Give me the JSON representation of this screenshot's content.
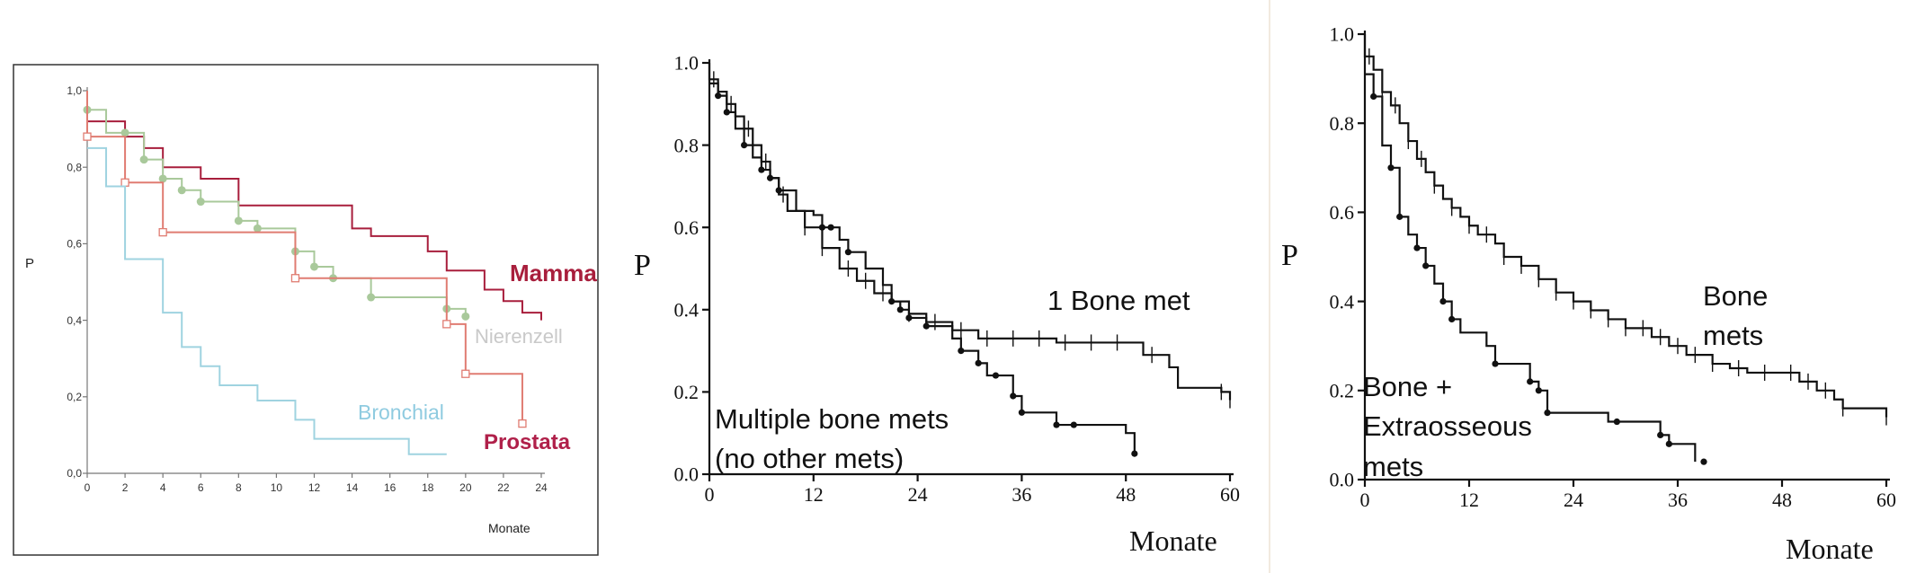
{
  "colors": {
    "mamma": "#a81e3c",
    "prostata": "#e07c72",
    "nierenzell": "#a9c99b",
    "nierenzell_label": "#c9c9c9",
    "bronchial": "#9fd3e0",
    "bronchial_label": "#8fcbe0",
    "prostata_label": "#b0204a",
    "ink": "#111111",
    "frame": "#444444"
  },
  "chart_data": [
    {
      "type": "line",
      "ylabel": "P",
      "xlabel": "Monate",
      "xlim": [
        0,
        24
      ],
      "ylim": [
        0,
        1
      ],
      "x_ticks": [
        "0",
        "2",
        "4",
        "6",
        "8",
        "10",
        "12",
        "14",
        "16",
        "18",
        "20",
        "22",
        "24"
      ],
      "y_ticks": [
        "0,0",
        "0,2",
        "0,4",
        "0,6",
        "0,8",
        "1,0"
      ],
      "legend": "inline labels",
      "series": [
        {
          "name": "Mamma",
          "color_key": "mamma",
          "marker": "none",
          "points": [
            [
              0,
              1.0
            ],
            [
              0,
              0.92
            ],
            [
              2,
              0.88
            ],
            [
              3,
              0.85
            ],
            [
              4,
              0.8
            ],
            [
              6,
              0.77
            ],
            [
              8,
              0.7
            ],
            [
              14,
              0.64
            ],
            [
              15,
              0.62
            ],
            [
              18,
              0.58
            ],
            [
              19,
              0.53
            ],
            [
              21,
              0.48
            ],
            [
              22,
              0.45
            ],
            [
              23,
              0.42
            ],
            [
              24,
              0.4
            ]
          ]
        },
        {
          "name": "Nierenzell",
          "color_key": "nierenzell",
          "marker": "dot",
          "points": [
            [
              0,
              1.0
            ],
            [
              0,
              0.95
            ],
            [
              1,
              0.89
            ],
            [
              3,
              0.82
            ],
            [
              4,
              0.77
            ],
            [
              5,
              0.74
            ],
            [
              6,
              0.71
            ],
            [
              8,
              0.66
            ],
            [
              9,
              0.64
            ],
            [
              11,
              0.58
            ],
            [
              12,
              0.54
            ],
            [
              13,
              0.51
            ],
            [
              15,
              0.46
            ],
            [
              19,
              0.43
            ],
            [
              20,
              0.41
            ]
          ],
          "markers_x": [
            0,
            2,
            3,
            4,
            5,
            6,
            8,
            9,
            11,
            12,
            13,
            15,
            19,
            20
          ]
        },
        {
          "name": "Prostata",
          "color_key": "prostata",
          "marker": "square",
          "points": [
            [
              0,
              1.0
            ],
            [
              0,
              0.88
            ],
            [
              2,
              0.76
            ],
            [
              4,
              0.63
            ],
            [
              11,
              0.51
            ],
            [
              19,
              0.39
            ],
            [
              20,
              0.26
            ],
            [
              23,
              0.13
            ]
          ],
          "markers_x": [
            0,
            2,
            4,
            11,
            19,
            20,
            23
          ]
        },
        {
          "name": "Bronchial",
          "color_key": "bronchial",
          "marker": "none",
          "points": [
            [
              0,
              0.85
            ],
            [
              1,
              0.75
            ],
            [
              2,
              0.56
            ],
            [
              4,
              0.42
            ],
            [
              5,
              0.33
            ],
            [
              6,
              0.28
            ],
            [
              7,
              0.23
            ],
            [
              9,
              0.19
            ],
            [
              11,
              0.14
            ],
            [
              12,
              0.09
            ],
            [
              17,
              0.05
            ],
            [
              19,
              0.05
            ]
          ]
        }
      ]
    },
    {
      "type": "line",
      "ylabel": "P",
      "xlabel": "Monate",
      "xlim": [
        0,
        60
      ],
      "ylim": [
        0,
        1
      ],
      "x_ticks": [
        "0",
        "12",
        "24",
        "36",
        "48",
        "60"
      ],
      "y_ticks": [
        "0.0",
        "0.2",
        "0.4",
        "0.6",
        "0.8",
        "1.0"
      ],
      "legend": "inline labels",
      "series": [
        {
          "name": "1 Bone met",
          "marker": "cross",
          "points": [
            [
              0,
              1.0
            ],
            [
              0,
              0.96
            ],
            [
              1,
              0.93
            ],
            [
              2,
              0.9
            ],
            [
              3,
              0.87
            ],
            [
              4,
              0.84
            ],
            [
              5,
              0.8
            ],
            [
              6,
              0.76
            ],
            [
              7,
              0.72
            ],
            [
              8,
              0.68
            ],
            [
              9,
              0.64
            ],
            [
              11,
              0.6
            ],
            [
              13,
              0.55
            ],
            [
              15,
              0.5
            ],
            [
              17,
              0.47
            ],
            [
              19,
              0.44
            ],
            [
              21,
              0.42
            ],
            [
              23,
              0.39
            ],
            [
              25,
              0.37
            ],
            [
              28,
              0.35
            ],
            [
              31,
              0.33
            ],
            [
              40,
              0.32
            ],
            [
              50,
              0.29
            ],
            [
              53,
              0.26
            ],
            [
              54,
              0.21
            ],
            [
              59,
              0.2
            ],
            [
              60,
              0.18
            ]
          ],
          "markers_x": [
            0.5,
            2.5,
            4.5,
            6.5,
            8.5,
            11,
            13,
            16,
            18,
            20,
            23,
            26,
            29,
            32,
            35,
            38,
            41,
            44,
            47,
            51,
            59,
            60
          ]
        },
        {
          "name": "Multiple bone mets",
          "marker": "dot",
          "points": [
            [
              0,
              0.95
            ],
            [
              1,
              0.92
            ],
            [
              2,
              0.88
            ],
            [
              3,
              0.84
            ],
            [
              4,
              0.8
            ],
            [
              5,
              0.77
            ],
            [
              6,
              0.74
            ],
            [
              7,
              0.72
            ],
            [
              8,
              0.69
            ],
            [
              10,
              0.64
            ],
            [
              12,
              0.63
            ],
            [
              13,
              0.6
            ],
            [
              15,
              0.57
            ],
            [
              16,
              0.54
            ],
            [
              18,
              0.5
            ],
            [
              20,
              0.46
            ],
            [
              21,
              0.42
            ],
            [
              22,
              0.4
            ],
            [
              23,
              0.38
            ],
            [
              25,
              0.36
            ],
            [
              28,
              0.33
            ],
            [
              29,
              0.3
            ],
            [
              31,
              0.27
            ],
            [
              32,
              0.24
            ],
            [
              35,
              0.19
            ],
            [
              36,
              0.15
            ],
            [
              40,
              0.12
            ],
            [
              48,
              0.1
            ],
            [
              49,
              0.05
            ]
          ],
          "markers_x": [
            1,
            2,
            4,
            6,
            7,
            8,
            13,
            14,
            16,
            21,
            22,
            23,
            25,
            29,
            31,
            33,
            35,
            36,
            40,
            42,
            49
          ]
        }
      ],
      "annotations": [
        "1 Bone met",
        "Multiple bone mets",
        "(no other mets)"
      ]
    },
    {
      "type": "line",
      "ylabel": "P",
      "xlabel": "Monate",
      "xlim": [
        0,
        60
      ],
      "ylim": [
        0,
        1
      ],
      "x_ticks": [
        "0",
        "12",
        "24",
        "36",
        "48",
        "60"
      ],
      "y_ticks": [
        "0.0",
        "0.2",
        "0.4",
        "0.6",
        "0.8",
        "1.0"
      ],
      "legend": "inline labels",
      "series": [
        {
          "name": "Bone mets",
          "marker": "cross",
          "points": [
            [
              0,
              1.0
            ],
            [
              0,
              0.95
            ],
            [
              1,
              0.92
            ],
            [
              2,
              0.87
            ],
            [
              3,
              0.84
            ],
            [
              4,
              0.8
            ],
            [
              5,
              0.76
            ],
            [
              6,
              0.72
            ],
            [
              7,
              0.69
            ],
            [
              8,
              0.66
            ],
            [
              9,
              0.63
            ],
            [
              10,
              0.61
            ],
            [
              11,
              0.59
            ],
            [
              12,
              0.57
            ],
            [
              13,
              0.55
            ],
            [
              15,
              0.53
            ],
            [
              16,
              0.5
            ],
            [
              18,
              0.48
            ],
            [
              20,
              0.45
            ],
            [
              22,
              0.42
            ],
            [
              24,
              0.4
            ],
            [
              26,
              0.38
            ],
            [
              28,
              0.36
            ],
            [
              30,
              0.34
            ],
            [
              33,
              0.32
            ],
            [
              35,
              0.3
            ],
            [
              37,
              0.28
            ],
            [
              40,
              0.26
            ],
            [
              42,
              0.25
            ],
            [
              44,
              0.24
            ],
            [
              48,
              0.24
            ],
            [
              50,
              0.22
            ],
            [
              52,
              0.2
            ],
            [
              54,
              0.18
            ],
            [
              55,
              0.16
            ],
            [
              60,
              0.14
            ]
          ],
          "markers_x": [
            0.5,
            2,
            3.5,
            5,
            6.5,
            8,
            10,
            12,
            14,
            16,
            18,
            20,
            22,
            24,
            26,
            28,
            30,
            32,
            34,
            36,
            38,
            40,
            43,
            46,
            49,
            51,
            53,
            55,
            60
          ]
        },
        {
          "name": "Bone + Extraosseous mets",
          "marker": "dot",
          "points": [
            [
              0,
              0.91
            ],
            [
              1,
              0.86
            ],
            [
              2,
              0.75
            ],
            [
              3,
              0.7
            ],
            [
              4,
              0.59
            ],
            [
              5,
              0.55
            ],
            [
              6,
              0.52
            ],
            [
              7,
              0.48
            ],
            [
              8,
              0.44
            ],
            [
              9,
              0.4
            ],
            [
              10,
              0.36
            ],
            [
              11,
              0.33
            ],
            [
              12,
              0.33
            ],
            [
              14,
              0.3
            ],
            [
              15,
              0.26
            ],
            [
              19,
              0.22
            ],
            [
              20,
              0.2
            ],
            [
              21,
              0.15
            ],
            [
              28,
              0.13
            ],
            [
              34,
              0.1
            ],
            [
              35,
              0.08
            ],
            [
              38,
              0.04
            ]
          ],
          "markers_x": [
            1,
            3,
            4,
            6,
            7,
            9,
            10,
            15,
            19,
            20,
            21,
            29,
            34,
            35,
            39
          ]
        }
      ],
      "annotations": [
        "Bone",
        "mets",
        "Bone +",
        "Extraosseous",
        "mets"
      ]
    }
  ]
}
